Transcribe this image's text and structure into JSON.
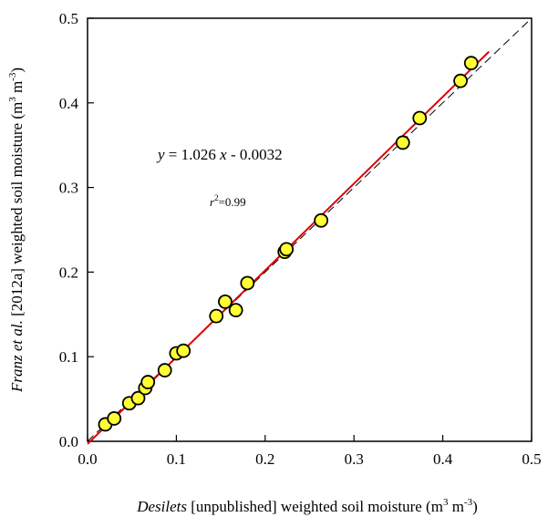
{
  "chart_data": {
    "type": "scatter",
    "title": "",
    "xlabel": {
      "italic": "Desilets",
      "rest": " [unpublished] weighted soil moisture (m",
      "sup1": "3",
      "mid": " m",
      "sup2": "-3",
      "end": ")"
    },
    "ylabel": {
      "italic": "Franz et al.",
      "rest": " [2012a] weighted soil moisture (m",
      "sup1": "3",
      "mid": " m",
      "sup2": "-3",
      "end": ")"
    },
    "xlim": [
      0.0,
      0.5
    ],
    "ylim": [
      0.0,
      0.5
    ],
    "x_ticks": [
      "0.0",
      "0.1",
      "0.2",
      "0.3",
      "0.4",
      "0.5"
    ],
    "y_ticks": [
      "0.0",
      "0.1",
      "0.2",
      "0.3",
      "0.4",
      "0.5"
    ],
    "grid": false,
    "series": [
      {
        "marker_color": "#ffff33",
        "marker_edge": "#000000",
        "x": [
          0.02,
          0.03,
          0.047,
          0.057,
          0.065,
          0.068,
          0.087,
          0.1,
          0.108,
          0.145,
          0.155,
          0.167,
          0.18,
          0.222,
          0.224,
          0.263,
          0.355,
          0.374,
          0.42,
          0.432
        ],
        "y": [
          0.02,
          0.027,
          0.045,
          0.051,
          0.063,
          0.07,
          0.084,
          0.104,
          0.107,
          0.148,
          0.165,
          0.155,
          0.187,
          0.224,
          0.227,
          0.261,
          0.353,
          0.382,
          0.426,
          0.447
        ]
      }
    ],
    "regression": {
      "slope": 1.026,
      "intercept": -0.0032,
      "x_range": [
        0.0,
        0.452
      ],
      "color": "#dd0000"
    },
    "one_to_one": {
      "x_range": [
        0.0,
        0.5
      ],
      "style": "dashed",
      "color": "#000000"
    },
    "annotations": {
      "equation": {
        "y_var": "y",
        "eq_mid": " = 1.026 ",
        "x_var": "x",
        "eq_end": " - 0.0032"
      },
      "r2": {
        "r_var": "r",
        "sup": "2",
        "value": "=0.99"
      }
    }
  }
}
